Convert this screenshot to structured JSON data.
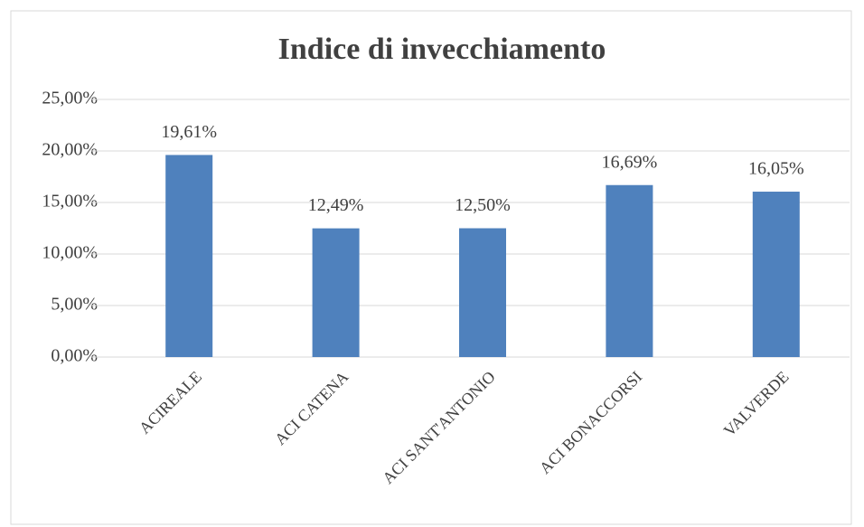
{
  "chart_data": {
    "type": "bar",
    "title": "Indice di invecchiamento",
    "categories": [
      "ACIREALE",
      "ACI CATENA",
      "ACI SANT'ANTONIO",
      "ACI BONACCORSI",
      "VALVERDE"
    ],
    "values": [
      19.61,
      12.49,
      12.5,
      16.69,
      16.05
    ],
    "value_labels": [
      "19,61%",
      "12,49%",
      "12,50%",
      "16,69%",
      "16,05%"
    ],
    "color": "#4f81bd",
    "ylim": [
      0,
      25
    ],
    "yticks": [
      {
        "value": 0,
        "label": "0,00%"
      },
      {
        "value": 5,
        "label": "5,00%"
      },
      {
        "value": 10,
        "label": "10,00%"
      },
      {
        "value": 15,
        "label": "15,00%"
      },
      {
        "value": 20,
        "label": "20,00%"
      },
      {
        "value": 25,
        "label": "25,00%"
      }
    ],
    "grid": true
  }
}
